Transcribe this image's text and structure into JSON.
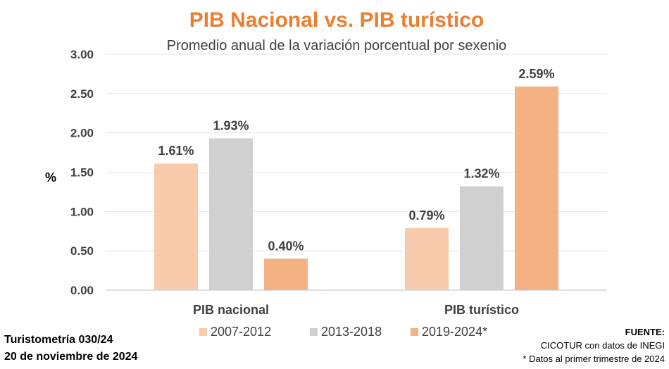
{
  "chart_data": {
    "type": "bar",
    "title": "PIB Nacional vs. PIB turístico",
    "subtitle": "Promedio anual de la variación porcentual por sexenio",
    "ylabel": "%",
    "xlabel": "",
    "ylim": [
      0,
      3
    ],
    "yticks": [
      "0.00",
      "0.50",
      "1.00",
      "1.50",
      "2.00",
      "2.50",
      "3.00"
    ],
    "ytick_values": [
      0,
      0.5,
      1,
      1.5,
      2,
      2.5,
      3
    ],
    "grid": true,
    "legend_position": "bottom",
    "categories": [
      "PIB nacional",
      "PIB turístico"
    ],
    "series": [
      {
        "name": "2007-2012",
        "color": "#F8CBAD",
        "values": [
          1.61,
          0.79
        ],
        "labels": [
          "1.61%",
          "0.79%"
        ]
      },
      {
        "name": "2013-2018",
        "color": "#D0D0D0",
        "values": [
          1.93,
          1.32
        ],
        "labels": [
          "1.93%",
          "1.32%"
        ]
      },
      {
        "name": "2019-2024*",
        "color": "#F4B183",
        "values": [
          0.4,
          2.59
        ],
        "labels": [
          "0.40%",
          "2.59%"
        ]
      }
    ]
  },
  "footer": {
    "report_id": "Turistometría 030/24",
    "date": "20 de noviembre de 2024",
    "source_label": "FUENTE:",
    "source_text": "CICOTUR con datos de INEGI",
    "note": "* Datos al  primer trimestre de 2024"
  }
}
